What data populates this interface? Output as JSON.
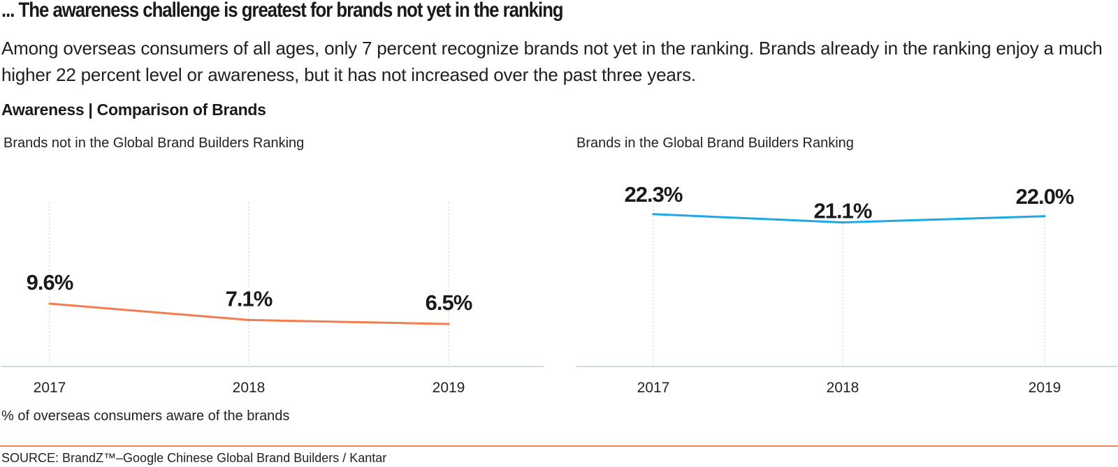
{
  "headline": "... The awareness challenge is greatest for brands not yet in the ranking",
  "lead": "Among overseas consumers of all ages, only 7 percent recognize brands not yet in the ranking. Brands already in the ranking enjoy a much higher 22 percent level or awareness, but it has not increased over the past three years.",
  "section_title": "Awareness | Comparison of Brands",
  "footnote": "% of overseas consumers aware of the brands",
  "source": "SOURCE: BrandZ™–Google Chinese Global Brand Builders / Kantar",
  "colors": {
    "not_in_ranking": "#f47c4f",
    "in_ranking": "#1aa9e6",
    "axis": "#d3dbd9",
    "grid": "#c8c8c8",
    "divider": "#f0865a"
  },
  "chart_data": [
    {
      "type": "line",
      "title": "Brands not in the Global Brand Builders Ranking",
      "x": [
        "2017",
        "2018",
        "2019"
      ],
      "values": [
        9.6,
        7.1,
        6.5
      ],
      "labels": [
        "9.6%",
        "7.1%",
        "6.5%"
      ],
      "ylim": [
        0,
        24
      ],
      "xlabel": "",
      "ylabel": "% of overseas consumers aware of the brands",
      "grid": "vertical dotted",
      "color": "#f47c4f"
    },
    {
      "type": "line",
      "title": "Brands in the Global Brand Builders Ranking",
      "x": [
        "2017",
        "2018",
        "2019"
      ],
      "values": [
        22.3,
        21.1,
        22.0
      ],
      "labels": [
        "22.3%",
        "21.1%",
        "22.0%"
      ],
      "ylim": [
        0,
        23
      ],
      "xlabel": "",
      "ylabel": "% of overseas consumers aware of the brands",
      "grid": "vertical dotted",
      "color": "#1aa9e6"
    }
  ]
}
